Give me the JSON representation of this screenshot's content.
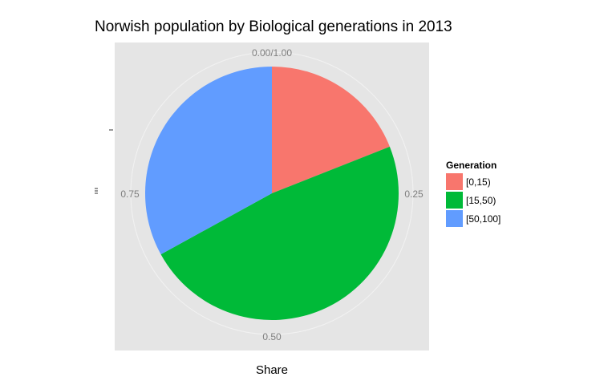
{
  "chart_data": {
    "type": "pie",
    "title": "Norwish population by Biological generations in 2013",
    "xlabel": "Share",
    "ylabel": "",
    "theta_ticks": [
      "0.00/1.00",
      "0.25",
      "0.50",
      "0.75"
    ],
    "legend": {
      "title": "Generation",
      "position": "right"
    },
    "categories": [
      "[0,15)",
      "[15,50)",
      "[50,100]"
    ],
    "values": [
      0.19,
      0.48,
      0.33
    ],
    "colors": [
      "#F8766D",
      "#00BA38",
      "#619CFF"
    ],
    "grid": true,
    "panel_background": "#E5E5E5"
  }
}
